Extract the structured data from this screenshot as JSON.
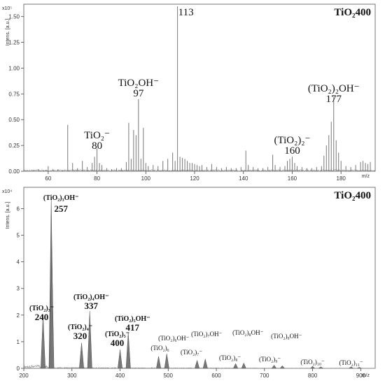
{
  "chart_data": [
    {
      "type": "line",
      "title": "TiO₂400",
      "ylabel": "Intens. [a.u.]",
      "y_multiplier": "x10⁵",
      "xlabel": "m/z",
      "xlim": [
        50,
        194
      ],
      "ylim": [
        0,
        1.62
      ],
      "x_ticks": [
        "60",
        "80",
        "100",
        "120",
        "140",
        "160",
        "180"
      ],
      "y_ticks": [
        "0.00",
        "0.25",
        "0.50",
        "0.75",
        "1.00",
        "1.25",
        "1.50"
      ],
      "peak_labels": [
        {
          "formula": "TiO₂⁻",
          "mass": "80",
          "x": 80
        },
        {
          "formula": "TiO₂OH⁻",
          "mass": "97",
          "x": 97
        },
        {
          "formula": "",
          "mass": "113",
          "x": 113
        },
        {
          "formula": "(TiO₂)₂⁻",
          "mass": "160",
          "x": 160
        },
        {
          "formula": "(TiO₂)₂OH⁻",
          "mass": "177",
          "x": 177
        }
      ],
      "peaks": [
        {
          "x": 54,
          "y": 0.01
        },
        {
          "x": 56,
          "y": 0.02
        },
        {
          "x": 58,
          "y": 0.01
        },
        {
          "x": 60,
          "y": 0.05
        },
        {
          "x": 62,
          "y": 0.02
        },
        {
          "x": 64,
          "y": 0.02
        },
        {
          "x": 66,
          "y": 0.01
        },
        {
          "x": 68,
          "y": 0.45
        },
        {
          "x": 70,
          "y": 0.08
        },
        {
          "x": 72,
          "y": 0.03
        },
        {
          "x": 74,
          "y": 0.1
        },
        {
          "x": 76,
          "y": 0.04
        },
        {
          "x": 78,
          "y": 0.08
        },
        {
          "x": 79,
          "y": 0.14
        },
        {
          "x": 80,
          "y": 0.22
        },
        {
          "x": 81,
          "y": 0.08
        },
        {
          "x": 82,
          "y": 0.06
        },
        {
          "x": 84,
          "y": 0.03
        },
        {
          "x": 86,
          "y": 0.02
        },
        {
          "x": 88,
          "y": 0.03
        },
        {
          "x": 90,
          "y": 0.03
        },
        {
          "x": 92,
          "y": 0.09
        },
        {
          "x": 93,
          "y": 0.47
        },
        {
          "x": 94,
          "y": 0.12
        },
        {
          "x": 95,
          "y": 0.4
        },
        {
          "x": 96,
          "y": 0.35
        },
        {
          "x": 97,
          "y": 0.7
        },
        {
          "x": 98,
          "y": 0.12
        },
        {
          "x": 99,
          "y": 0.42
        },
        {
          "x": 100,
          "y": 0.08
        },
        {
          "x": 101,
          "y": 0.05
        },
        {
          "x": 103,
          "y": 0.06
        },
        {
          "x": 105,
          "y": 0.05
        },
        {
          "x": 107,
          "y": 0.1
        },
        {
          "x": 109,
          "y": 0.12
        },
        {
          "x": 111,
          "y": 0.18
        },
        {
          "x": 112,
          "y": 0.1
        },
        {
          "x": 113,
          "y": 1.6
        },
        {
          "x": 114,
          "y": 0.14
        },
        {
          "x": 115,
          "y": 0.13
        },
        {
          "x": 116,
          "y": 0.12
        },
        {
          "x": 117,
          "y": 0.1
        },
        {
          "x": 118,
          "y": 0.08
        },
        {
          "x": 119,
          "y": 0.08
        },
        {
          "x": 120,
          "y": 0.07
        },
        {
          "x": 121,
          "y": 0.06
        },
        {
          "x": 122,
          "y": 0.05
        },
        {
          "x": 123,
          "y": 0.06
        },
        {
          "x": 125,
          "y": 0.04
        },
        {
          "x": 127,
          "y": 0.07
        },
        {
          "x": 129,
          "y": 0.04
        },
        {
          "x": 131,
          "y": 0.03
        },
        {
          "x": 133,
          "y": 0.04
        },
        {
          "x": 135,
          "y": 0.03
        },
        {
          "x": 137,
          "y": 0.03
        },
        {
          "x": 139,
          "y": 0.04
        },
        {
          "x": 141,
          "y": 0.2
        },
        {
          "x": 142,
          "y": 0.06
        },
        {
          "x": 144,
          "y": 0.04
        },
        {
          "x": 146,
          "y": 0.03
        },
        {
          "x": 148,
          "y": 0.03
        },
        {
          "x": 150,
          "y": 0.04
        },
        {
          "x": 152,
          "y": 0.16
        },
        {
          "x": 153,
          "y": 0.06
        },
        {
          "x": 155,
          "y": 0.04
        },
        {
          "x": 157,
          "y": 0.05
        },
        {
          "x": 158,
          "y": 0.1
        },
        {
          "x": 159,
          "y": 0.12
        },
        {
          "x": 160,
          "y": 0.14
        },
        {
          "x": 161,
          "y": 0.08
        },
        {
          "x": 162,
          "y": 0.05
        },
        {
          "x": 164,
          "y": 0.04
        },
        {
          "x": 166,
          "y": 0.03
        },
        {
          "x": 168,
          "y": 0.03
        },
        {
          "x": 170,
          "y": 0.04
        },
        {
          "x": 172,
          "y": 0.05
        },
        {
          "x": 173,
          "y": 0.15
        },
        {
          "x": 174,
          "y": 0.25
        },
        {
          "x": 175,
          "y": 0.35
        },
        {
          "x": 176,
          "y": 0.48
        },
        {
          "x": 177,
          "y": 0.72
        },
        {
          "x": 178,
          "y": 0.3
        },
        {
          "x": 179,
          "y": 0.18
        },
        {
          "x": 180,
          "y": 0.1
        },
        {
          "x": 182,
          "y": 0.05
        },
        {
          "x": 184,
          "y": 0.04
        },
        {
          "x": 186,
          "y": 0.06
        },
        {
          "x": 188,
          "y": 0.09
        },
        {
          "x": 189,
          "y": 0.1
        },
        {
          "x": 190,
          "y": 0.08
        },
        {
          "x": 191,
          "y": 0.07
        },
        {
          "x": 192,
          "y": 0.09
        }
      ]
    },
    {
      "type": "line",
      "title": "TiO₂400",
      "ylabel": "Intens. [a.u.]",
      "y_multiplier": "x10⁴",
      "xlabel": "m/z",
      "xlim": [
        200,
        930
      ],
      "ylim": [
        0,
        6.8
      ],
      "x_ticks": [
        "200",
        "300",
        "400",
        "500",
        "600",
        "700",
        "800",
        "900"
      ],
      "y_ticks": [
        "0",
        "1",
        "2",
        "3",
        "4",
        "5",
        "6"
      ],
      "peak_labels": [
        {
          "formula": "(TiO₂)₃⁻",
          "mass": "240",
          "x": 240
        },
        {
          "formula": "(TiO₂)₃OH⁻",
          "mass": "257",
          "x": 257
        },
        {
          "formula": "(TiO₂)₄⁻",
          "mass": "320",
          "x": 320
        },
        {
          "formula": "(TiO₂)₄OH⁻",
          "mass": "337",
          "x": 337
        },
        {
          "formula": "(TiO₂)₅⁻",
          "mass": "400",
          "x": 400
        },
        {
          "formula": "(TiO₂)₅OH⁻",
          "mass": "417",
          "x": 417
        },
        {
          "formula": "(TiO₂)₆",
          "mass": "",
          "x": 480
        },
        {
          "formula": "(TiO₂)₆OH⁻",
          "mass": "",
          "x": 497
        },
        {
          "formula": "(TiO₂)₇⁻",
          "mass": "",
          "x": 560
        },
        {
          "formula": "(TiO₂)₇OH⁻",
          "mass": "",
          "x": 577
        },
        {
          "formula": "(TiO₂)₈⁻",
          "mass": "",
          "x": 640
        },
        {
          "formula": "(TiO₂)₈OH⁻",
          "mass": "",
          "x": 657
        },
        {
          "formula": "(TiO₂)₉⁻",
          "mass": "",
          "x": 720
        },
        {
          "formula": "(TiO₂)₉OH⁻",
          "mass": "",
          "x": 737
        },
        {
          "formula": "(TiO₂)₁₀⁻",
          "mass": "",
          "x": 800
        },
        {
          "formula": "(TiO₂)₁₁⁻",
          "mass": "",
          "x": 880
        }
      ],
      "peaks": [
        {
          "x": 240,
          "y": 2.0
        },
        {
          "x": 257,
          "y": 6.4
        },
        {
          "x": 258,
          "y": 4.5
        },
        {
          "x": 320,
          "y": 0.95
        },
        {
          "x": 337,
          "y": 2.15
        },
        {
          "x": 400,
          "y": 0.7
        },
        {
          "x": 417,
          "y": 1.35
        },
        {
          "x": 480,
          "y": 0.45
        },
        {
          "x": 497,
          "y": 0.55
        },
        {
          "x": 560,
          "y": 0.3
        },
        {
          "x": 577,
          "y": 0.35
        },
        {
          "x": 640,
          "y": 0.18
        },
        {
          "x": 657,
          "y": 0.2
        },
        {
          "x": 720,
          "y": 0.12
        },
        {
          "x": 737,
          "y": 0.1
        },
        {
          "x": 800,
          "y": 0.08
        },
        {
          "x": 817,
          "y": 0.06
        },
        {
          "x": 880,
          "y": 0.06
        },
        {
          "x": 897,
          "y": 0.04
        }
      ]
    }
  ]
}
